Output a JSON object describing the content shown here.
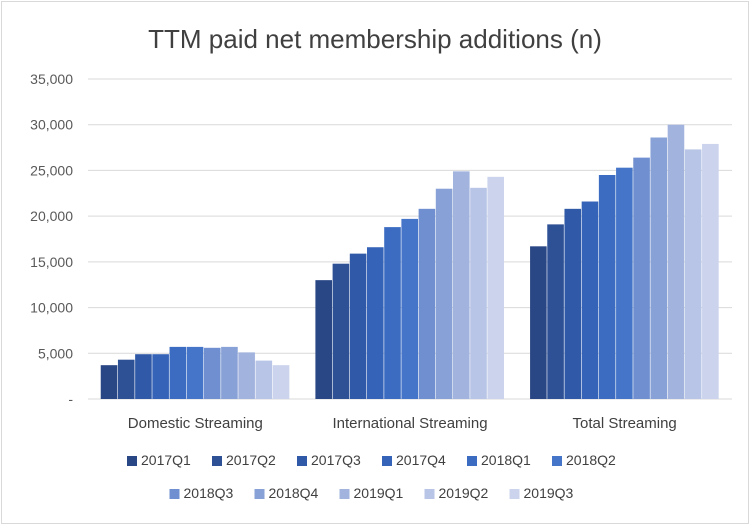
{
  "chart_data": {
    "type": "bar",
    "title": "TTM paid net membership additions (n)",
    "categories": [
      "Domestic Streaming",
      "International Streaming",
      "Total Streaming"
    ],
    "ylim": [
      0,
      35000
    ],
    "yticks": [
      "-",
      "5,000",
      "10,000",
      "15,000",
      "20,000",
      "25,000",
      "30,000",
      "35,000"
    ],
    "grid": true,
    "legend_position": "bottom",
    "series": [
      {
        "name": "2017Q1",
        "color": "#2a4785",
        "values": [
          3700,
          13000,
          16700
        ]
      },
      {
        "name": "2017Q2",
        "color": "#2e5196",
        "values": [
          4300,
          14800,
          19100
        ]
      },
      {
        "name": "2017Q3",
        "color": "#305aa7",
        "values": [
          4900,
          15900,
          20800
        ]
      },
      {
        "name": "2017Q4",
        "color": "#3563b8",
        "values": [
          4900,
          16600,
          21600
        ]
      },
      {
        "name": "2018Q1",
        "color": "#3b6cc2",
        "values": [
          5700,
          18800,
          24500
        ]
      },
      {
        "name": "2018Q2",
        "color": "#4575c9",
        "values": [
          5700,
          19700,
          25300
        ]
      },
      {
        "name": "2018Q3",
        "color": "#6f8fd0",
        "values": [
          5600,
          20800,
          26400
        ]
      },
      {
        "name": "2018Q4",
        "color": "#88a1d6",
        "values": [
          5700,
          23000,
          28600
        ]
      },
      {
        "name": "2019Q1",
        "color": "#a2b4de",
        "values": [
          5100,
          24900,
          30000
        ]
      },
      {
        "name": "2019Q2",
        "color": "#b8c5e6",
        "values": [
          4200,
          23100,
          27300
        ]
      },
      {
        "name": "2019Q3",
        "color": "#cbd4ec",
        "values": [
          3700,
          24300,
          27900
        ]
      }
    ]
  }
}
